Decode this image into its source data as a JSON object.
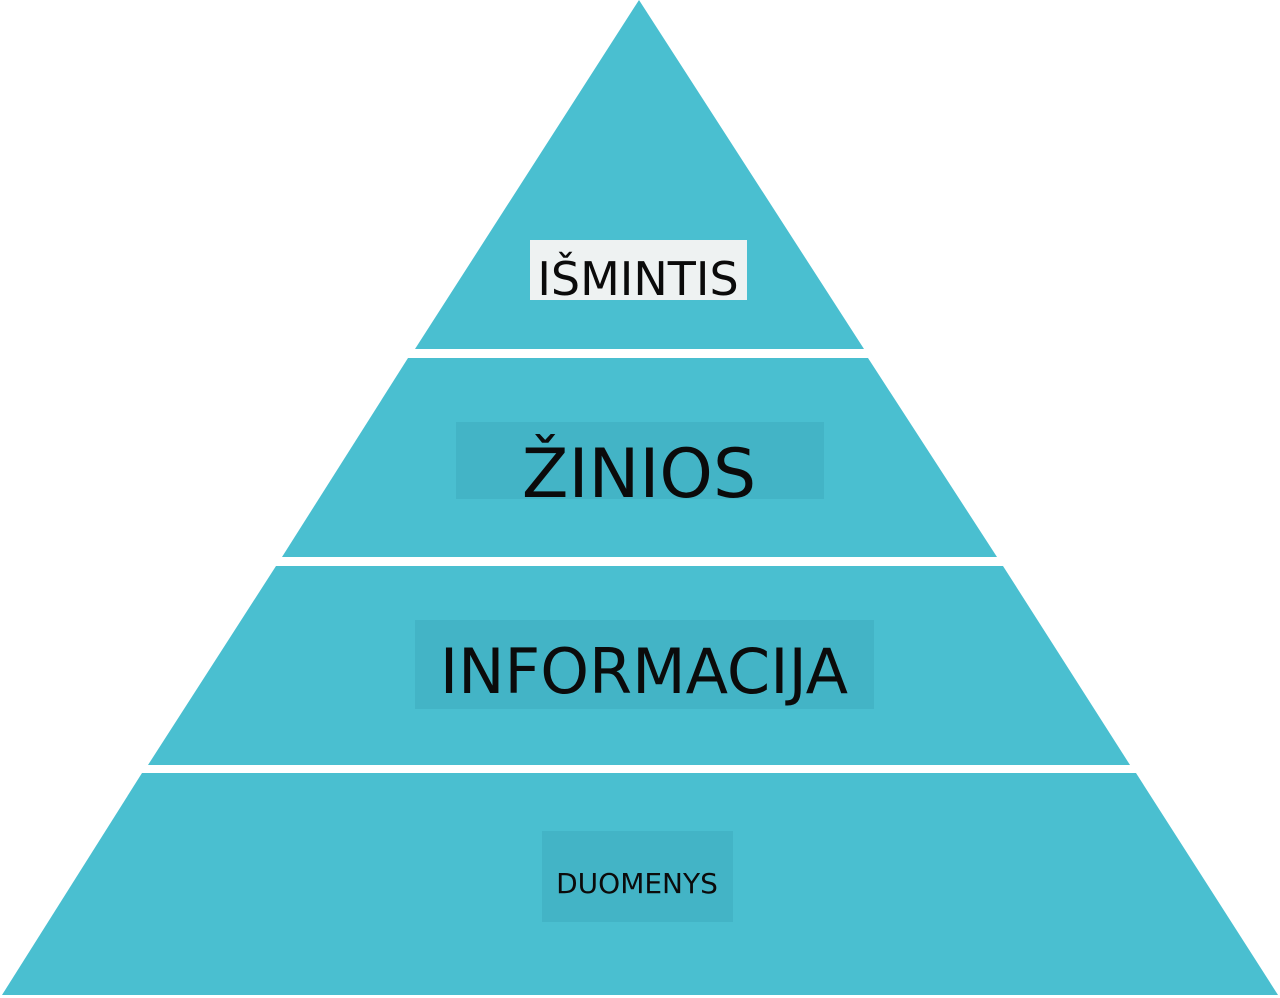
{
  "diagram": {
    "type": "pyramid",
    "levels": [
      {
        "label": "IŠMINTIS"
      },
      {
        "label": "ŽINIOS"
      },
      {
        "label": "INFORMACIJA"
      },
      {
        "label": "DUOMENYS"
      }
    ]
  },
  "colors": {
    "layer_fill": "#4abfd0",
    "label_box_fill": "#43b4c6",
    "top_label_box_fill": "#eef2f2",
    "separator": "#ffffff",
    "text": "#0b0b0b"
  }
}
